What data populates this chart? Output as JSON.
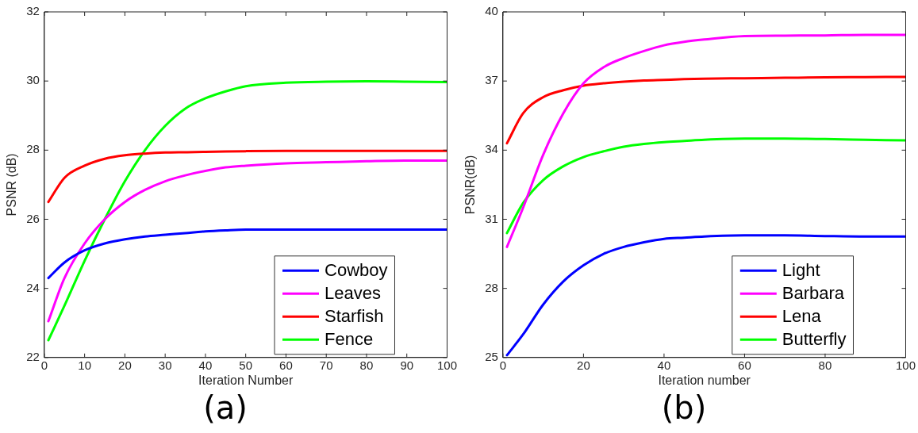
{
  "chart_data": [
    {
      "type": "line",
      "title": "(a)",
      "xlabel": "Iteration Number",
      "ylabel": "PSNR (dB)",
      "x": [
        1,
        5,
        10,
        15,
        20,
        25,
        30,
        35,
        40,
        45,
        50,
        60,
        70,
        80,
        90,
        100
      ],
      "xlim": [
        0,
        100
      ],
      "xticks": [
        0,
        10,
        20,
        30,
        40,
        50,
        60,
        70,
        80,
        90,
        100
      ],
      "ylim": [
        22,
        32
      ],
      "yticks": [
        22,
        24,
        26,
        28,
        30,
        32
      ],
      "legend": "bottom right",
      "marker": "none",
      "line_style": "solid",
      "series": [
        {
          "name": "Cowboy",
          "color": "#0000ff",
          "values": [
            24.3,
            24.75,
            25.1,
            25.3,
            25.42,
            25.5,
            25.55,
            25.6,
            25.65,
            25.68,
            25.7,
            25.7,
            25.7,
            25.7,
            25.7,
            25.7
          ]
        },
        {
          "name": "Leaves",
          "color": "#ff00ff",
          "values": [
            23.05,
            24.3,
            25.3,
            26.0,
            26.5,
            26.85,
            27.1,
            27.27,
            27.4,
            27.5,
            27.55,
            27.62,
            27.65,
            27.68,
            27.7,
            27.7
          ]
        },
        {
          "name": "Starfish",
          "color": "#ff0000",
          "values": [
            26.5,
            27.2,
            27.55,
            27.75,
            27.85,
            27.9,
            27.93,
            27.94,
            27.95,
            27.96,
            27.97,
            27.98,
            27.98,
            27.98,
            27.98,
            27.98
          ]
        },
        {
          "name": "Fence",
          "color": "#00ff00",
          "values": [
            22.5,
            23.5,
            24.8,
            26.0,
            27.1,
            28.0,
            28.7,
            29.2,
            29.5,
            29.7,
            29.85,
            29.95,
            29.98,
            29.99,
            29.98,
            29.97
          ]
        }
      ]
    },
    {
      "type": "line",
      "title": "(b)",
      "xlabel": "Iteration number",
      "ylabel": "PSNR(dB)",
      "x": [
        1,
        5,
        10,
        15,
        20,
        25,
        30,
        35,
        40,
        45,
        50,
        60,
        70,
        80,
        90,
        100
      ],
      "xlim": [
        0,
        100
      ],
      "xticks": [
        0,
        20,
        40,
        60,
        80,
        100
      ],
      "ylim": [
        25,
        40
      ],
      "yticks": [
        25,
        28,
        31,
        34,
        37,
        40
      ],
      "legend": "bottom right",
      "marker": "none",
      "line_style": "solid",
      "series": [
        {
          "name": "Light",
          "color": "#0000ff",
          "values": [
            25.1,
            26.0,
            27.3,
            28.3,
            29.0,
            29.5,
            29.8,
            30.0,
            30.15,
            30.2,
            30.25,
            30.3,
            30.3,
            30.27,
            30.25,
            30.25
          ]
        },
        {
          "name": "Barbara",
          "color": "#ff00ff",
          "values": [
            29.8,
            31.5,
            33.8,
            35.6,
            36.9,
            37.6,
            38.0,
            38.3,
            38.55,
            38.7,
            38.8,
            38.95,
            38.97,
            38.98,
            39.0,
            39.0
          ]
        },
        {
          "name": "Lena",
          "color": "#ff0000",
          "values": [
            34.3,
            35.6,
            36.3,
            36.6,
            36.8,
            36.9,
            36.97,
            37.02,
            37.05,
            37.08,
            37.1,
            37.12,
            37.14,
            37.16,
            37.17,
            37.18
          ]
        },
        {
          "name": "Butterfly",
          "color": "#00ff00",
          "values": [
            30.4,
            31.7,
            32.7,
            33.3,
            33.7,
            33.95,
            34.15,
            34.27,
            34.35,
            34.4,
            34.45,
            34.5,
            34.5,
            34.48,
            34.45,
            34.42
          ]
        }
      ]
    }
  ]
}
